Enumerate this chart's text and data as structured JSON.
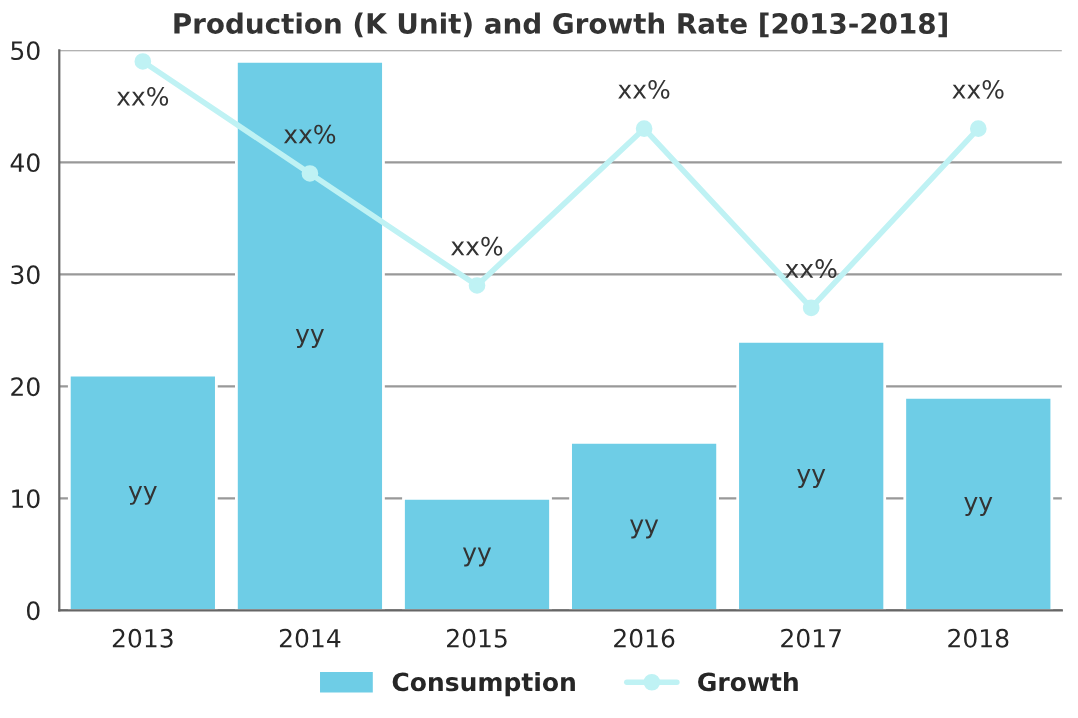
{
  "chart_data": {
    "type": "bar",
    "title": "Production (K Unit) and Growth Rate [2013-2018]",
    "categories": [
      "2013",
      "2014",
      "2015",
      "2016",
      "2017",
      "2018"
    ],
    "series": [
      {
        "name": "Consumption",
        "color": "#6ecde6",
        "values": [
          21,
          49,
          10,
          15,
          24,
          19
        ],
        "value_labels": [
          "yy",
          "yy",
          "yy",
          "yy",
          "yy",
          "yy"
        ]
      },
      {
        "name": "Growth",
        "type": "line",
        "color": "#bff2f4",
        "marker": "circle",
        "values": [
          49,
          39,
          29,
          43,
          27,
          43
        ],
        "value_labels": [
          "xx%",
          "xx%",
          "xx%",
          "xx%",
          "xx%",
          "xx%"
        ]
      }
    ],
    "ylim": [
      0,
      50
    ],
    "yticks": [
      0,
      10,
      20,
      30,
      40,
      50
    ],
    "grid": "y",
    "legend": "bottom"
  }
}
